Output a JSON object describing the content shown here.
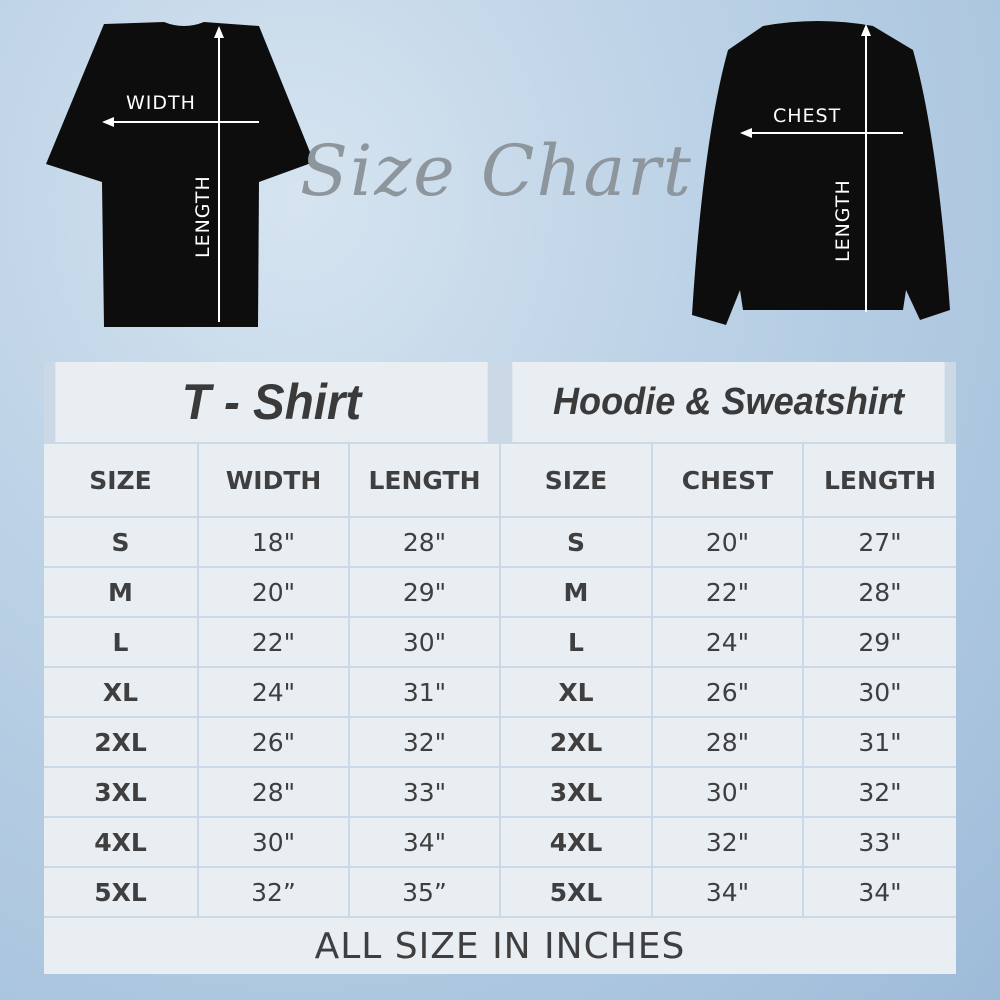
{
  "heading": "Size Chart",
  "tshirt_diagram": {
    "width_label": "WIDTH",
    "length_label": "LENGTH"
  },
  "hoodie_diagram": {
    "chest_label": "CHEST",
    "length_label": "LENGTH"
  },
  "tshirt": {
    "title": "T - Shirt",
    "headers": [
      "SIZE",
      "WIDTH",
      "LENGTH"
    ],
    "rows": [
      [
        "S",
        "18\"",
        "28\""
      ],
      [
        "M",
        "20\"",
        "29\""
      ],
      [
        "L",
        "22\"",
        "30\""
      ],
      [
        "XL",
        "24\"",
        "31\""
      ],
      [
        "2XL",
        "26\"",
        "32\""
      ],
      [
        "3XL",
        "28\"",
        "33\""
      ],
      [
        "4XL",
        "30\"",
        "34\""
      ],
      [
        "5XL",
        "32”",
        "35”"
      ]
    ]
  },
  "hoodie": {
    "title": "Hoodie & Sweatshirt",
    "headers": [
      "SIZE",
      "CHEST",
      "LENGTH"
    ],
    "rows": [
      [
        "S",
        "20\"",
        "27\""
      ],
      [
        "M",
        "22\"",
        "28\""
      ],
      [
        "L",
        "24\"",
        "29\""
      ],
      [
        "XL",
        "26\"",
        "30\""
      ],
      [
        "2XL",
        "28\"",
        "31\""
      ],
      [
        "3XL",
        "30\"",
        "32\""
      ],
      [
        "4XL",
        "32\"",
        "33\""
      ],
      [
        "5XL",
        "34\"",
        "34\""
      ]
    ]
  },
  "footer": "ALL SIZE IN INCHES"
}
